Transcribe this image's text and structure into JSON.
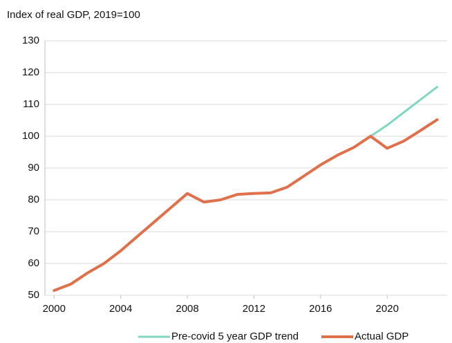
{
  "chart_data": {
    "type": "line",
    "y_axis_label": "Index of real GDP, 2019=100",
    "x": [
      2000,
      2001,
      2002,
      2003,
      2004,
      2005,
      2006,
      2007,
      2008,
      2009,
      2010,
      2011,
      2012,
      2013,
      2014,
      2015,
      2016,
      2017,
      2018,
      2019,
      2020,
      2021,
      2022,
      2023
    ],
    "series": [
      {
        "name": "Pre-covid 5 year GDP trend",
        "color": "#7dd8c2",
        "values": [
          null,
          null,
          null,
          null,
          null,
          null,
          null,
          null,
          null,
          null,
          null,
          null,
          null,
          null,
          null,
          null,
          null,
          null,
          null,
          100,
          103.5,
          107.5,
          111.5,
          115.5
        ]
      },
      {
        "name": "Actual GDP",
        "color": "#e0704a",
        "values": [
          51.5,
          53.5,
          57,
          60,
          64,
          68.5,
          73,
          77.5,
          82,
          79.3,
          80,
          81.7,
          82,
          82.2,
          84,
          87.5,
          91,
          94,
          96.5,
          100,
          96.2,
          98.5,
          101.8,
          105.2
        ]
      }
    ],
    "xlim": [
      1999.45,
      2023.6
    ],
    "xticks": [
      2000,
      2004,
      2008,
      2012,
      2016,
      2020
    ],
    "ylim": [
      50,
      130
    ],
    "yticks": [
      50,
      60,
      70,
      80,
      90,
      100,
      110,
      120,
      130
    ],
    "grid": true,
    "legend": "bottom"
  }
}
